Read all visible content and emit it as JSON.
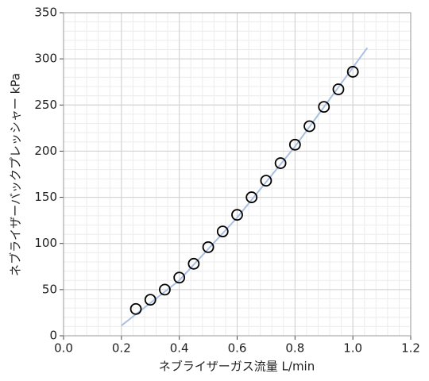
{
  "chart_data": {
    "type": "scatter",
    "xlabel": "ネブライザーガス流量 L/min",
    "ylabel": "ネブライザーバックプレッシャー kPa",
    "series": [
      {
        "color": "#000000",
        "x": [
          0.25,
          0.3,
          0.35,
          0.4,
          0.45,
          0.5,
          0.55,
          0.6,
          0.65,
          0.7,
          0.75,
          0.8,
          0.85,
          0.9,
          0.95,
          1.0
        ],
        "values": [
          29,
          39,
          50,
          63,
          78,
          96,
          113,
          131,
          150,
          168,
          187,
          207,
          227,
          248,
          267,
          286
        ]
      }
    ],
    "fit": {
      "color": "#a9c0e0",
      "x": [
        0.2,
        0.4,
        0.6,
        0.8,
        1.05
      ],
      "values": [
        11,
        60,
        128,
        205,
        312
      ]
    },
    "xlim": [
      0,
      1.2
    ],
    "xticks": [
      {
        "value": 0,
        "label": "0.0"
      },
      0.2,
      0.4,
      0.6,
      0.8,
      {
        "value": 1,
        "label": "1.0"
      },
      1.2
    ],
    "ylim": [
      0,
      350
    ],
    "yticks": [
      0,
      50,
      100,
      150,
      200,
      250,
      300,
      350
    ],
    "grid": true
  }
}
